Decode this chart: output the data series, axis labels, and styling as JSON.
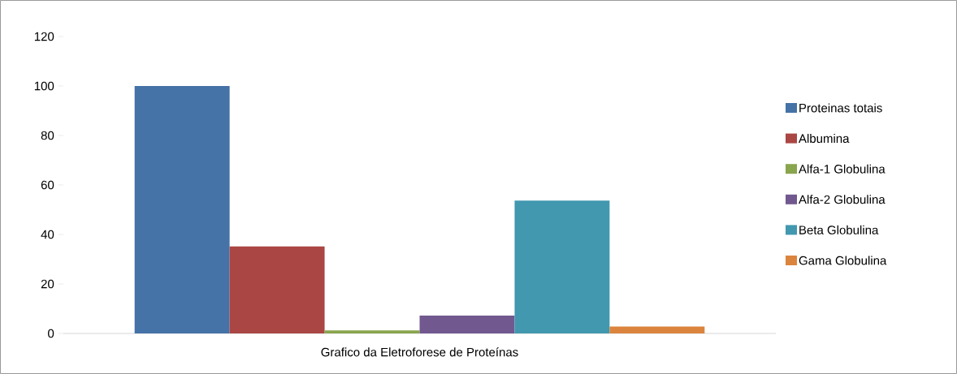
{
  "chart_data": {
    "type": "bar",
    "categories": [
      "Grafico da Eletroforese de Proteínas"
    ],
    "series": [
      {
        "name": "Proteinas totais",
        "color": "#4572a7",
        "values": [
          100
        ]
      },
      {
        "name": "Albumina",
        "color": "#aa4643",
        "values": [
          35.2
        ]
      },
      {
        "name": "Alfa-1 Globulina",
        "color": "#89a54e",
        "values": [
          1.2
        ]
      },
      {
        "name": "Alfa-2 Globulina",
        "color": "#71588f",
        "values": [
          7.2
        ]
      },
      {
        "name": "Beta Globulina",
        "color": "#4198af",
        "values": [
          53.7
        ]
      },
      {
        "name": "Gama Globulina",
        "color": "#db843d",
        "values": [
          2.8
        ]
      }
    ],
    "ylim": [
      0,
      120
    ],
    "yticks": [
      0,
      20,
      40,
      60,
      80,
      100,
      120
    ],
    "grid": false,
    "legend": "right"
  }
}
